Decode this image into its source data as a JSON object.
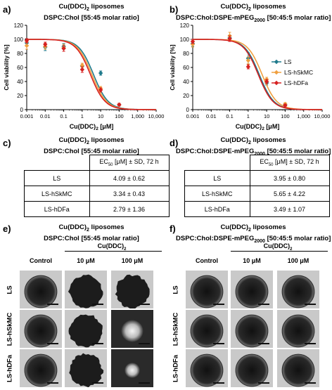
{
  "panels": {
    "a": {
      "label": "a)",
      "title1": "Cu(DDC)",
      "title1_sub": "2",
      "title1_rest": " liposomes",
      "title2": "DSPC:Chol [55:45 molar ratio]"
    },
    "b": {
      "label": "b)",
      "title1": "Cu(DDC)",
      "title1_sub": "2",
      "title1_rest": " liposomes",
      "title2a": "DSPC:Chol:DSPE-mPEG",
      "title2_sub": "2000",
      "title2b": " [50:45:5 molar ratio]"
    },
    "c": {
      "label": "c)",
      "title1": "Cu(DDC)",
      "title1_sub": "2",
      "title1_rest": " liposomes",
      "title2": "DSPC:Chol [55:45 molar ratio]"
    },
    "d": {
      "label": "d)",
      "title1": "Cu(DDC)",
      "title1_sub": "2",
      "title1_rest": " liposomes",
      "title2a": "DSPC:Chol:DSPE-mPEG",
      "title2_sub": "2000",
      "title2b": " [50:45:5 molar ratio]"
    },
    "e": {
      "label": "e)",
      "title1": "Cu(DDC)",
      "title1_sub": "2",
      "title1_rest": " liposomes",
      "title2": "DSPC:Chol [55:45 molar ratio]"
    },
    "f": {
      "label": "f)",
      "title1": "Cu(DDC)",
      "title1_sub": "2",
      "title1_rest": " liposomes",
      "title2a": "DSPC:Chol:DSPE-mPEG",
      "title2_sub": "2000",
      "title2b": " [50:45:5 molar ratio]"
    }
  },
  "colors": {
    "LS": "#1f7a8c",
    "LS-hSkMC": "#f0a040",
    "LS-hDFa": "#d62020"
  },
  "chart_data": [
    {
      "type": "line",
      "panel": "a",
      "xscale": "log",
      "xlim": [
        0.001,
        10000
      ],
      "ylim": [
        0,
        120
      ],
      "xticks": [
        "0.001",
        "0.01",
        "0.1",
        "1",
        "10",
        "100",
        "1,000",
        "10,000"
      ],
      "yticks": [
        "0",
        "20",
        "40",
        "60",
        "80",
        "100",
        "120"
      ],
      "xlabel": "Cu(DDC)",
      "xlabel_sub": "2",
      "xlabel_rest": " [μM]",
      "ylabel": "Cell viability [%]",
      "grid": false,
      "series": [
        {
          "name": "LS",
          "x": [
            0.001,
            0.01,
            0.1,
            1,
            10,
            100
          ],
          "y": [
            95,
            89,
            90,
            62,
            52,
            7
          ],
          "err": [
            4,
            5,
            4,
            4,
            3,
            2
          ],
          "ec50": 4.09
        },
        {
          "name": "LS-hSkMC",
          "x": [
            0.001,
            0.01,
            0.1,
            1,
            10,
            100
          ],
          "y": [
            91,
            90,
            88,
            63,
            30,
            7
          ],
          "err": [
            5,
            4,
            5,
            3,
            3,
            2
          ],
          "ec50": 3.34
        },
        {
          "name": "LS-hDFa",
          "x": [
            0.001,
            0.01,
            0.1,
            1,
            10,
            100
          ],
          "y": [
            98,
            93,
            87,
            57,
            28,
            7
          ],
          "err": [
            3,
            3,
            4,
            4,
            3,
            2
          ],
          "ec50": 2.79
        }
      ]
    },
    {
      "type": "line",
      "panel": "b",
      "xscale": "log",
      "xlim": [
        0.001,
        10000
      ],
      "ylim": [
        0,
        120
      ],
      "xticks": [
        "0.001",
        "0.01",
        "0.1",
        "1",
        "10",
        "100",
        "1,000",
        "10,000"
      ],
      "yticks": [
        "0",
        "20",
        "40",
        "60",
        "80",
        "100",
        "120"
      ],
      "xlabel": "Cu(DDC)",
      "xlabel_sub": "2",
      "xlabel_rest": " [μM]",
      "ylabel": "Cell viability [%]",
      "grid": false,
      "legend": "right",
      "series": [
        {
          "name": "LS",
          "x": [
            0.001,
            0.1,
            1,
            10,
            100
          ],
          "y": [
            94,
            102,
            73,
            38,
            7
          ],
          "err": [
            4,
            4,
            8,
            3,
            2
          ],
          "ec50": 3.95
        },
        {
          "name": "LS-hSkMC",
          "x": [
            0.001,
            0.1,
            1,
            10,
            100
          ],
          "y": [
            93,
            105,
            70,
            43,
            8
          ],
          "err": [
            4,
            5,
            5,
            3,
            2
          ],
          "ec50": 5.65
        },
        {
          "name": "LS-hDFa",
          "x": [
            0.001,
            0.1,
            1,
            10,
            100
          ],
          "y": [
            97,
            101,
            61,
            40,
            6
          ],
          "err": [
            3,
            4,
            3,
            3,
            2
          ],
          "ec50": 3.49
        }
      ]
    },
    {
      "type": "table",
      "panel": "c",
      "header_a": "EC",
      "header_sub": "50",
      "header_b": " [μM] ± SD, 72 h",
      "rows": [
        {
          "label": "LS",
          "value": "4.09 ± 0.62"
        },
        {
          "label": "LS-hSkMC",
          "value": "3.34 ± 0.43"
        },
        {
          "label": "LS-hDFa",
          "value": "2.79 ± 1.36"
        }
      ]
    },
    {
      "type": "table",
      "panel": "d",
      "header_a": "EC",
      "header_sub": "50",
      "header_b": " [μM] ± SD, 72 h",
      "rows": [
        {
          "label": "LS",
          "value": "3.95 ± 0.80"
        },
        {
          "label": "LS-hSkMC",
          "value": "5.65 ± 4.22"
        },
        {
          "label": "LS-hDFa",
          "value": "3.49 ± 1.07"
        }
      ]
    }
  ],
  "images": {
    "group_label": "Cu(DDC)",
    "group_sub": "2",
    "columns": [
      "Control",
      "10 μM",
      "100 μM"
    ],
    "rows": [
      "LS",
      "LS-hSkMC",
      "LS-hDFa"
    ]
  }
}
